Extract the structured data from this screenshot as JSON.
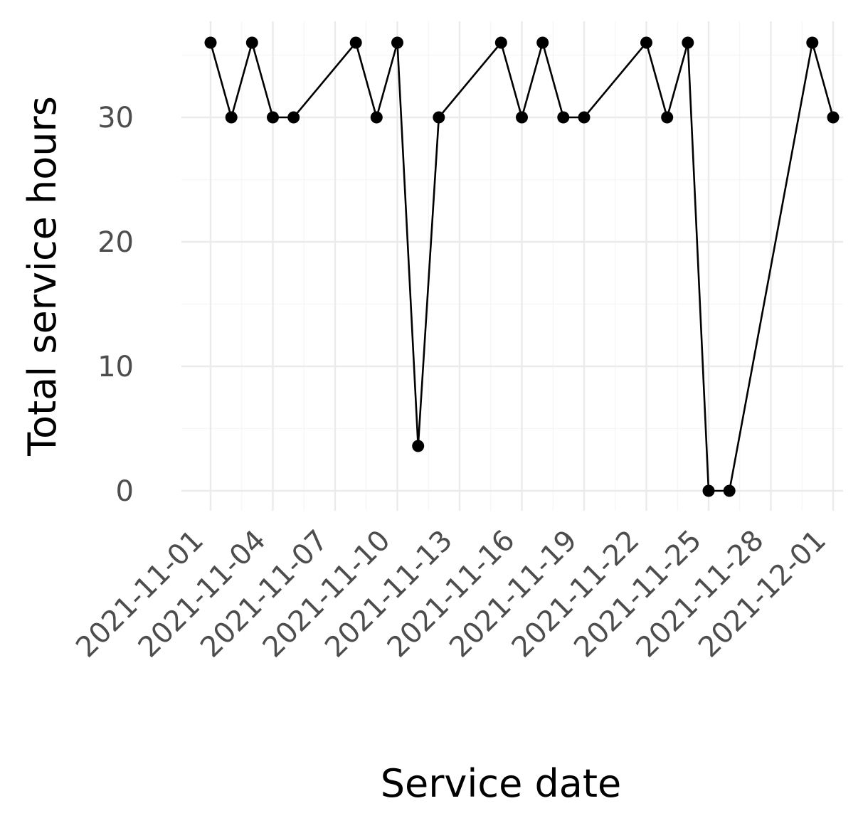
{
  "chart_data": {
    "type": "line",
    "title": "",
    "xlabel": "Service date",
    "ylabel": "Total service hours",
    "x_axis_kind": "date",
    "xlim": [
      "2021-11-01",
      "2021-12-01"
    ],
    "ylim": [
      0,
      36
    ],
    "x_ticks": [
      "2021-11-01",
      "2021-11-04",
      "2021-11-07",
      "2021-11-10",
      "2021-11-13",
      "2021-11-16",
      "2021-11-19",
      "2021-11-22",
      "2021-11-25",
      "2021-11-28",
      "2021-12-01"
    ],
    "y_ticks": [
      "0",
      "10",
      "20",
      "30"
    ],
    "grid": true,
    "legend": "none",
    "colors": {
      "line": "#000000",
      "grid": "#ebebeb",
      "tick_text": "#4d4d4d"
    },
    "series": [
      {
        "x": [
          "2021-11-01",
          "2021-11-02",
          "2021-11-03",
          "2021-11-04",
          "2021-11-05",
          "2021-11-08",
          "2021-11-09",
          "2021-11-10",
          "2021-11-11",
          "2021-11-12",
          "2021-11-15",
          "2021-11-16",
          "2021-11-17",
          "2021-11-18",
          "2021-11-19",
          "2021-11-22",
          "2021-11-23",
          "2021-11-24",
          "2021-11-25",
          "2021-11-26",
          "2021-11-30",
          "2021-12-01"
        ],
        "y": [
          36,
          30,
          36,
          30,
          30,
          36,
          30,
          36,
          3.6,
          30,
          36,
          30,
          36,
          30,
          30,
          36,
          30,
          36,
          0,
          0,
          36,
          30
        ]
      }
    ]
  }
}
